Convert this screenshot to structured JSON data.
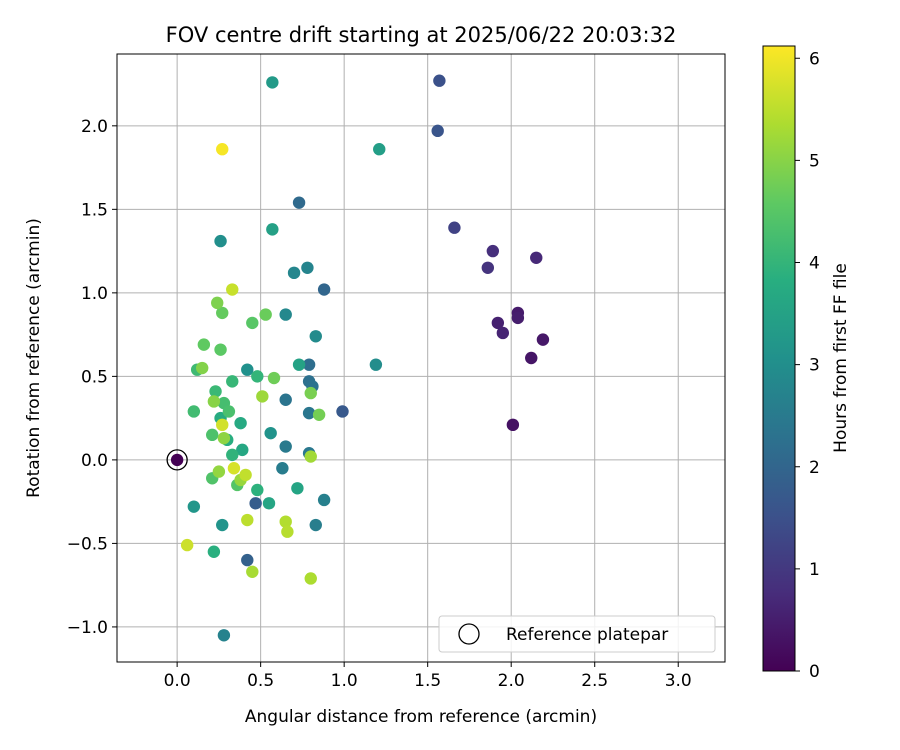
{
  "chart_data": {
    "type": "scatter",
    "title": "FOV centre drift starting at 2025/06/22 20:03:32",
    "xlabel": "Angular distance from reference (arcmin)",
    "ylabel": "Rotation from reference (arcmin)",
    "xlim": [
      -0.36,
      3.28
    ],
    "ylim": [
      -1.21,
      2.43
    ],
    "xticks": [
      0.0,
      0.5,
      1.0,
      1.5,
      2.0,
      2.5,
      3.0
    ],
    "xtick_labels": [
      "0.0",
      "0.5",
      "1.0",
      "1.5",
      "2.0",
      "2.5",
      "3.0"
    ],
    "yticks": [
      -1.0,
      -0.5,
      0.0,
      0.5,
      1.0,
      1.5,
      2.0
    ],
    "ytick_labels": [
      "−1.0",
      "−0.5",
      "0.0",
      "0.5",
      "1.0",
      "1.5",
      "2.0"
    ],
    "grid": true,
    "colorbar": {
      "label": "Hours from first FF file",
      "colormap": "viridis",
      "range": [
        0,
        6.12
      ],
      "ticks": [
        0,
        1,
        2,
        3,
        4,
        5,
        6
      ],
      "tick_labels": [
        "0",
        "1",
        "2",
        "3",
        "4",
        "5",
        "6"
      ]
    },
    "legend": {
      "position": "bottom-right",
      "entries": [
        "Reference platepar"
      ]
    },
    "reference_point": {
      "x": 0.0,
      "y": 0.0
    },
    "points": [
      {
        "x": 0.0,
        "y": 0.0,
        "t": 0.0
      },
      {
        "x": 2.01,
        "y": 0.21,
        "t": 0.3
      },
      {
        "x": 2.12,
        "y": 0.61,
        "t": 0.35
      },
      {
        "x": 2.19,
        "y": 0.72,
        "t": 0.4
      },
      {
        "x": 2.04,
        "y": 0.88,
        "t": 0.45
      },
      {
        "x": 2.04,
        "y": 0.85,
        "t": 0.5
      },
      {
        "x": 1.92,
        "y": 0.82,
        "t": 0.55
      },
      {
        "x": 1.95,
        "y": 0.76,
        "t": 0.6
      },
      {
        "x": 2.15,
        "y": 1.21,
        "t": 0.7
      },
      {
        "x": 1.89,
        "y": 1.25,
        "t": 0.8
      },
      {
        "x": 1.86,
        "y": 1.15,
        "t": 0.9
      },
      {
        "x": 1.66,
        "y": 1.39,
        "t": 1.2
      },
      {
        "x": 1.57,
        "y": 2.27,
        "t": 1.5
      },
      {
        "x": 1.56,
        "y": 1.97,
        "t": 1.6
      },
      {
        "x": 0.99,
        "y": 0.29,
        "t": 1.7
      },
      {
        "x": 0.47,
        "y": -0.26,
        "t": 1.8
      },
      {
        "x": 0.42,
        "y": -0.6,
        "t": 1.9
      },
      {
        "x": 0.88,
        "y": 1.02,
        "t": 2.0
      },
      {
        "x": 0.73,
        "y": 1.54,
        "t": 2.1
      },
      {
        "x": 0.79,
        "y": 0.57,
        "t": 2.2
      },
      {
        "x": 0.79,
        "y": 0.47,
        "t": 2.25
      },
      {
        "x": 0.81,
        "y": 0.44,
        "t": 2.3
      },
      {
        "x": 0.65,
        "y": 0.36,
        "t": 2.35
      },
      {
        "x": 0.79,
        "y": 0.28,
        "t": 2.4
      },
      {
        "x": 0.79,
        "y": 0.04,
        "t": 2.45
      },
      {
        "x": 0.65,
        "y": 0.08,
        "t": 2.5
      },
      {
        "x": 0.63,
        "y": -0.05,
        "t": 2.55
      },
      {
        "x": 0.83,
        "y": -0.39,
        "t": 2.6
      },
      {
        "x": 0.88,
        "y": -0.24,
        "t": 2.65
      },
      {
        "x": 0.28,
        "y": -1.05,
        "t": 2.7
      },
      {
        "x": 0.78,
        "y": 1.15,
        "t": 2.75
      },
      {
        "x": 0.7,
        "y": 1.12,
        "t": 2.8
      },
      {
        "x": 0.65,
        "y": 0.87,
        "t": 2.85
      },
      {
        "x": 0.83,
        "y": 0.74,
        "t": 2.9
      },
      {
        "x": 1.19,
        "y": 0.57,
        "t": 2.95
      },
      {
        "x": 0.26,
        "y": 1.31,
        "t": 3.0
      },
      {
        "x": 0.42,
        "y": 0.54,
        "t": 3.05
      },
      {
        "x": 0.56,
        "y": 0.16,
        "t": 3.1
      },
      {
        "x": 0.27,
        "y": -0.39,
        "t": 3.15
      },
      {
        "x": 0.1,
        "y": -0.28,
        "t": 3.2
      },
      {
        "x": 0.57,
        "y": 2.26,
        "t": 3.3
      },
      {
        "x": 1.21,
        "y": 1.86,
        "t": 3.4
      },
      {
        "x": 0.57,
        "y": 1.38,
        "t": 3.45
      },
      {
        "x": 0.73,
        "y": 0.57,
        "t": 3.5
      },
      {
        "x": 0.72,
        "y": -0.17,
        "t": 3.55
      },
      {
        "x": 0.55,
        "y": -0.26,
        "t": 3.6
      },
      {
        "x": 0.39,
        "y": 0.06,
        "t": 3.65
      },
      {
        "x": 0.38,
        "y": 0.22,
        "t": 3.7
      },
      {
        "x": 0.26,
        "y": 0.25,
        "t": 3.75
      },
      {
        "x": 0.3,
        "y": 0.12,
        "t": 3.8
      },
      {
        "x": 0.22,
        "y": -0.55,
        "t": 3.85
      },
      {
        "x": 0.48,
        "y": -0.18,
        "t": 3.9
      },
      {
        "x": 0.33,
        "y": 0.03,
        "t": 3.95
      },
      {
        "x": 0.48,
        "y": 0.5,
        "t": 4.0
      },
      {
        "x": 0.33,
        "y": 0.47,
        "t": 4.05
      },
      {
        "x": 0.23,
        "y": 0.41,
        "t": 4.1
      },
      {
        "x": 0.12,
        "y": 0.54,
        "t": 4.15
      },
      {
        "x": 0.1,
        "y": 0.29,
        "t": 4.2
      },
      {
        "x": 0.28,
        "y": 0.34,
        "t": 4.25
      },
      {
        "x": 0.31,
        "y": 0.29,
        "t": 4.3
      },
      {
        "x": 0.21,
        "y": 0.15,
        "t": 4.35
      },
      {
        "x": 0.21,
        "y": -0.11,
        "t": 4.4
      },
      {
        "x": 0.36,
        "y": -0.15,
        "t": 4.45
      },
      {
        "x": 0.45,
        "y": 0.82,
        "t": 4.5
      },
      {
        "x": 0.26,
        "y": 0.66,
        "t": 4.55
      },
      {
        "x": 0.16,
        "y": 0.69,
        "t": 4.6
      },
      {
        "x": 0.27,
        "y": 0.88,
        "t": 4.65
      },
      {
        "x": 0.53,
        "y": 0.87,
        "t": 4.7
      },
      {
        "x": 0.58,
        "y": 0.49,
        "t": 4.75
      },
      {
        "x": 0.85,
        "y": 0.27,
        "t": 4.8
      },
      {
        "x": 0.8,
        "y": 0.4,
        "t": 4.85
      },
      {
        "x": 0.24,
        "y": 0.94,
        "t": 4.9
      },
      {
        "x": 0.15,
        "y": 0.55,
        "t": 4.95
      },
      {
        "x": 0.22,
        "y": 0.35,
        "t": 5.0
      },
      {
        "x": 0.28,
        "y": 0.13,
        "t": 5.05
      },
      {
        "x": 0.25,
        "y": -0.07,
        "t": 5.1
      },
      {
        "x": 0.38,
        "y": -0.12,
        "t": 5.15
      },
      {
        "x": 0.51,
        "y": 0.38,
        "t": 5.2
      },
      {
        "x": 0.8,
        "y": 0.02,
        "t": 5.25
      },
      {
        "x": 0.45,
        "y": -0.67,
        "t": 5.3
      },
      {
        "x": 0.8,
        "y": -0.71,
        "t": 5.35
      },
      {
        "x": 0.65,
        "y": -0.37,
        "t": 5.4
      },
      {
        "x": 0.66,
        "y": -0.43,
        "t": 5.45
      },
      {
        "x": 0.42,
        "y": -0.36,
        "t": 5.5
      },
      {
        "x": 0.41,
        "y": -0.09,
        "t": 5.55
      },
      {
        "x": 0.33,
        "y": 1.02,
        "t": 5.6
      },
      {
        "x": 0.06,
        "y": -0.51,
        "t": 5.65
      },
      {
        "x": 0.27,
        "y": 0.21,
        "t": 5.7
      },
      {
        "x": 0.34,
        "y": -0.05,
        "t": 5.75
      },
      {
        "x": 0.27,
        "y": 1.86,
        "t": 6.05
      }
    ]
  }
}
